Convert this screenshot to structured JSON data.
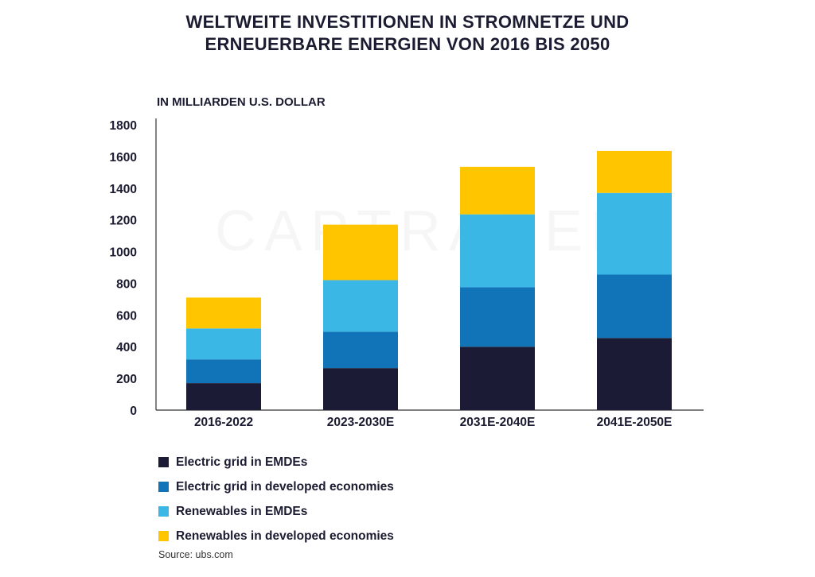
{
  "header": {
    "title_line1": "WELTWEITE INVESTITIONEN IN STROMNETZE UND",
    "title_line2": "ERNEUERBARE ENERGIEN VON 2016 BIS 2050"
  },
  "watermark": "CAPTRADER",
  "chart_data": {
    "type": "bar",
    "stacked": true,
    "ylabel": "IN MILLIARDEN U.S. DOLLAR",
    "ylim": [
      0,
      1800
    ],
    "yticks": [
      0,
      200,
      400,
      600,
      800,
      1000,
      1200,
      1400,
      1600,
      1800
    ],
    "grid": false,
    "legend_position": "bottom-left",
    "categories": [
      "2016-2022",
      "2023-2030E",
      "2031E-2040E",
      "2041E-2050E"
    ],
    "series": [
      {
        "name": "Electric grid in EMDEs",
        "color": "#1b1b35",
        "values": [
          170,
          265,
          400,
          455
        ]
      },
      {
        "name": "Electric grid in developed economies",
        "color": "#1274b8",
        "values": [
          150,
          230,
          375,
          400
        ]
      },
      {
        "name": "Renewables in EMDEs",
        "color": "#3bb7e5",
        "values": [
          195,
          325,
          460,
          515
        ]
      },
      {
        "name": "Renewables in developed economies",
        "color": "#ffc600",
        "values": [
          195,
          350,
          300,
          265
        ]
      }
    ]
  },
  "source": "Source: ubs.com"
}
